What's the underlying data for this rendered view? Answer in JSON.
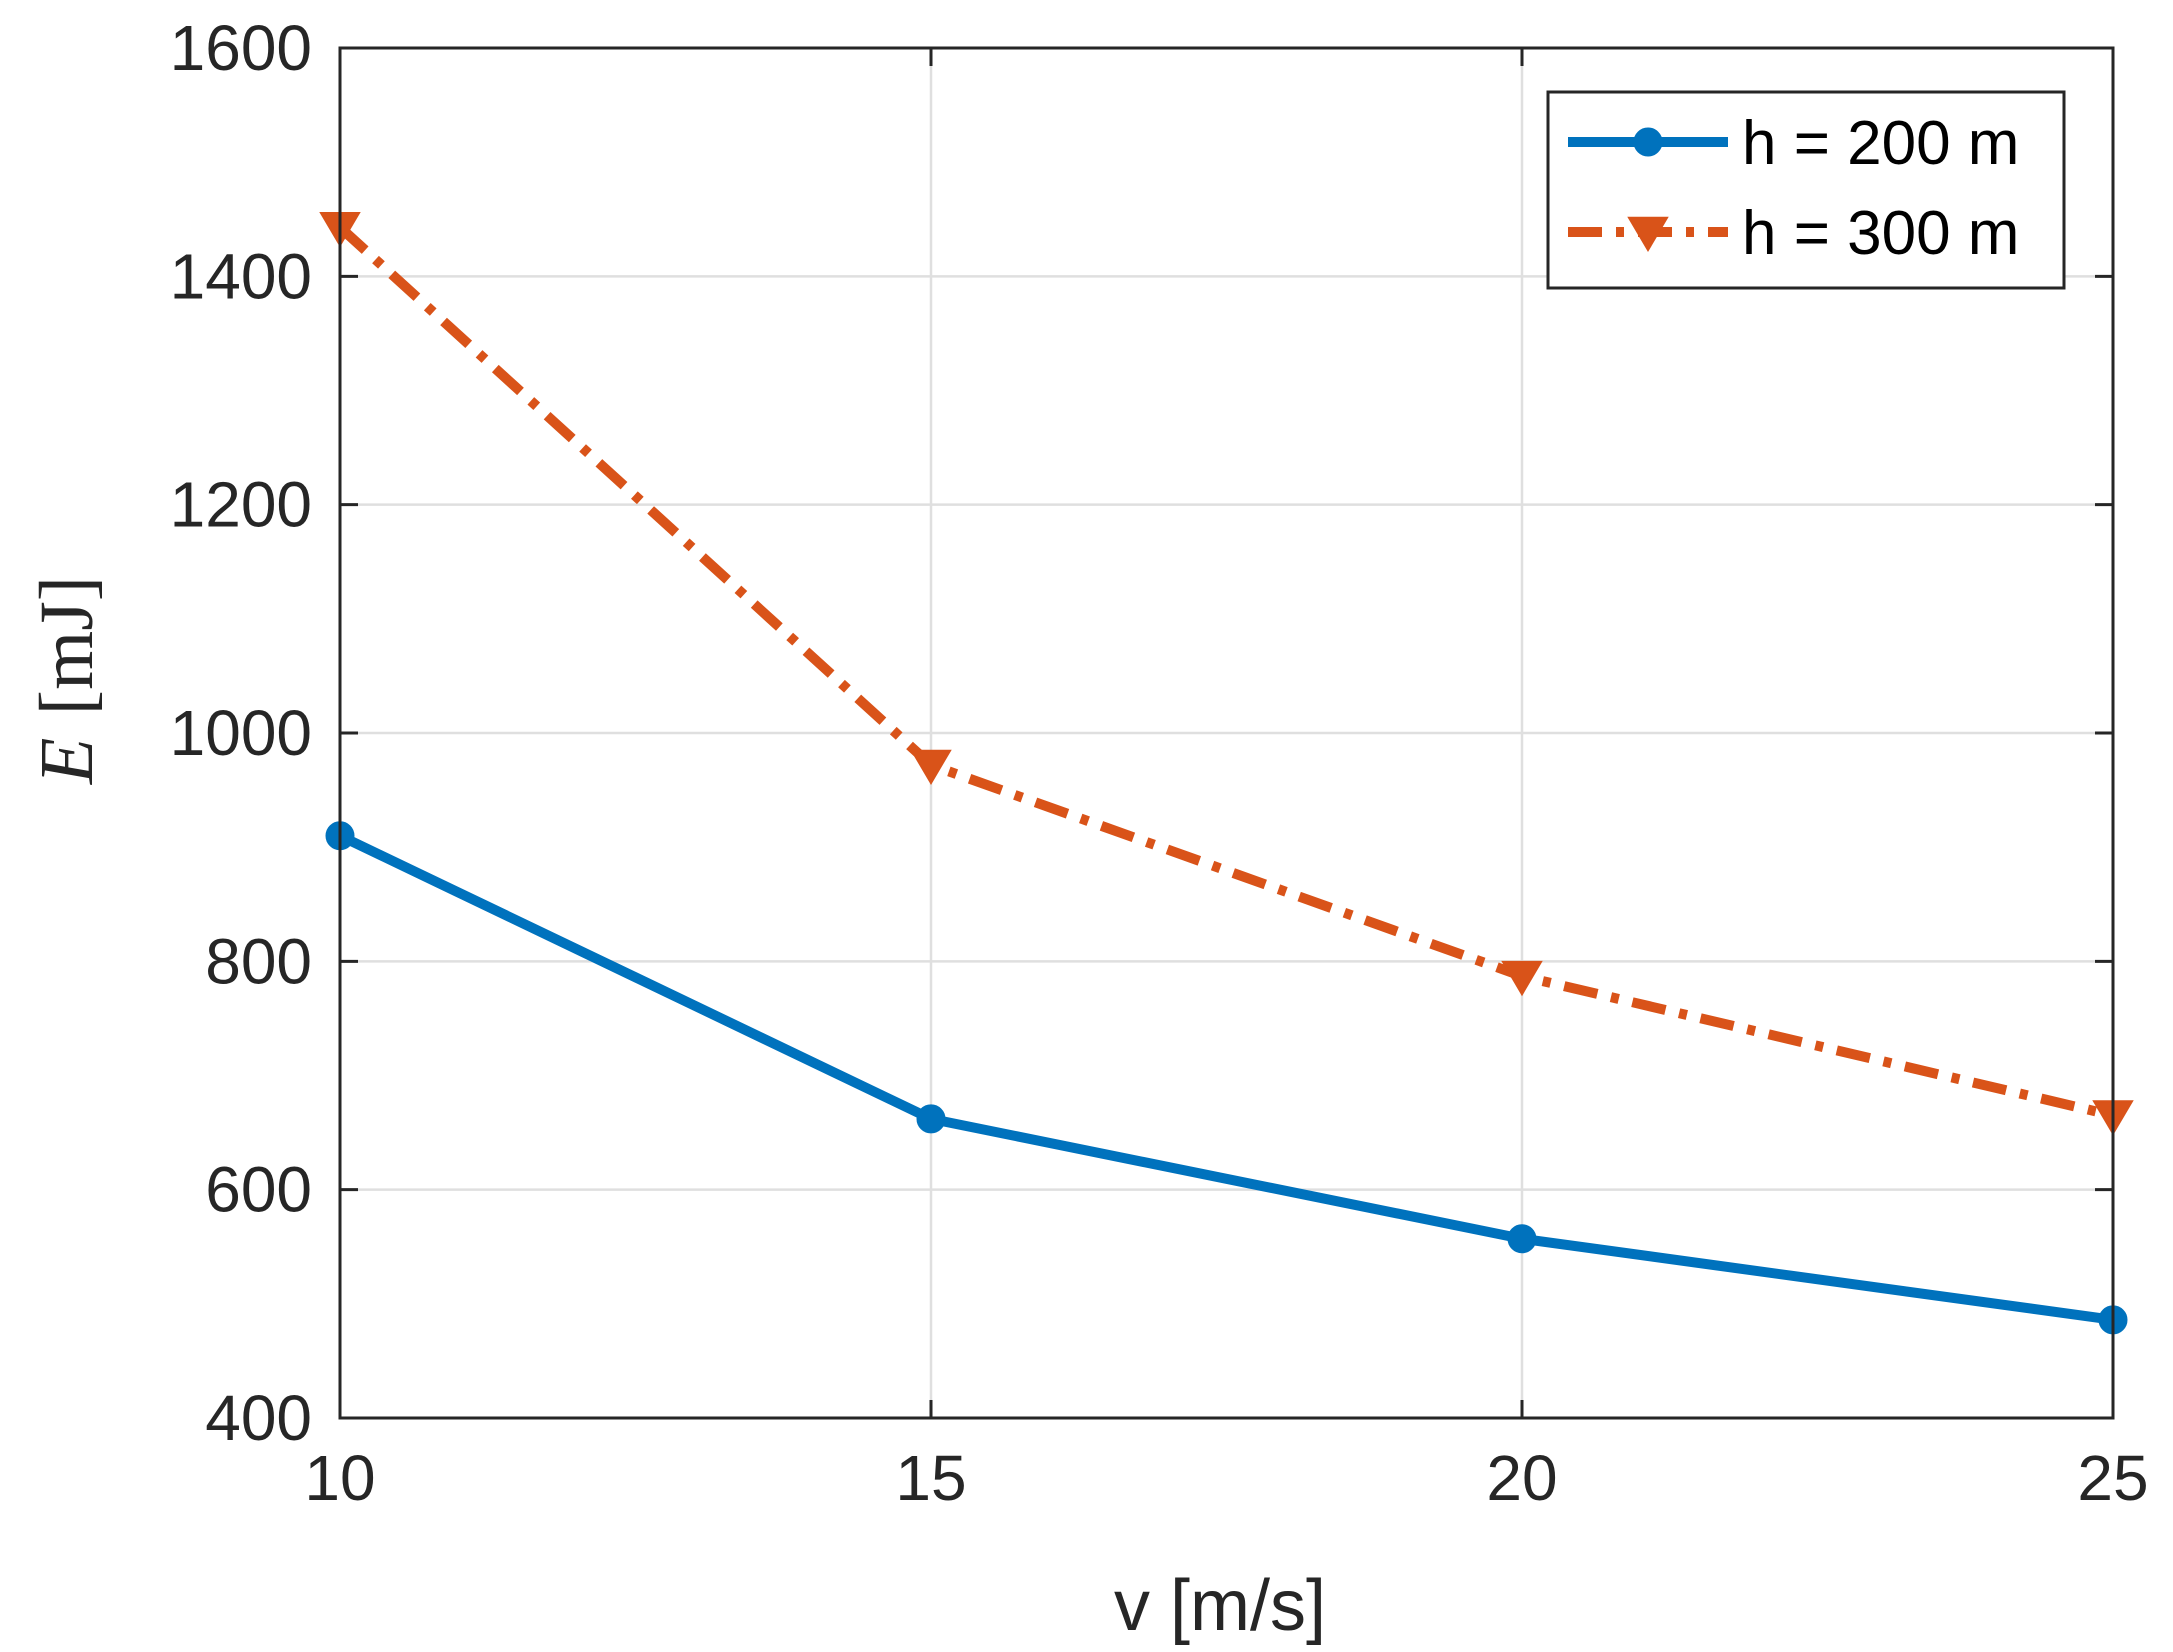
{
  "chart_data": {
    "type": "line",
    "xlabel": "v [m/s]",
    "ylabel": {
      "symbol": "E",
      "unit": "[mJ]"
    },
    "xlim": [
      10,
      25
    ],
    "ylim": [
      400,
      1600
    ],
    "x_ticks": [
      10,
      15,
      20,
      25
    ],
    "y_ticks": [
      400,
      600,
      800,
      1000,
      1200,
      1400,
      1600
    ],
    "grid": true,
    "legend_position": "top-right",
    "x": [
      10,
      15,
      20,
      25
    ],
    "series": [
      {
        "name": "h = 200 m",
        "values": [
          910,
          662,
          557,
          486
        ],
        "color": "#0072BD",
        "line_style": "solid",
        "marker": "circle"
      },
      {
        "name": "h = 300 m",
        "values": [
          1443,
          972,
          787,
          665
        ],
        "color": "#D95319",
        "line_style": "dash-dot",
        "marker": "triangle-down"
      }
    ]
  }
}
